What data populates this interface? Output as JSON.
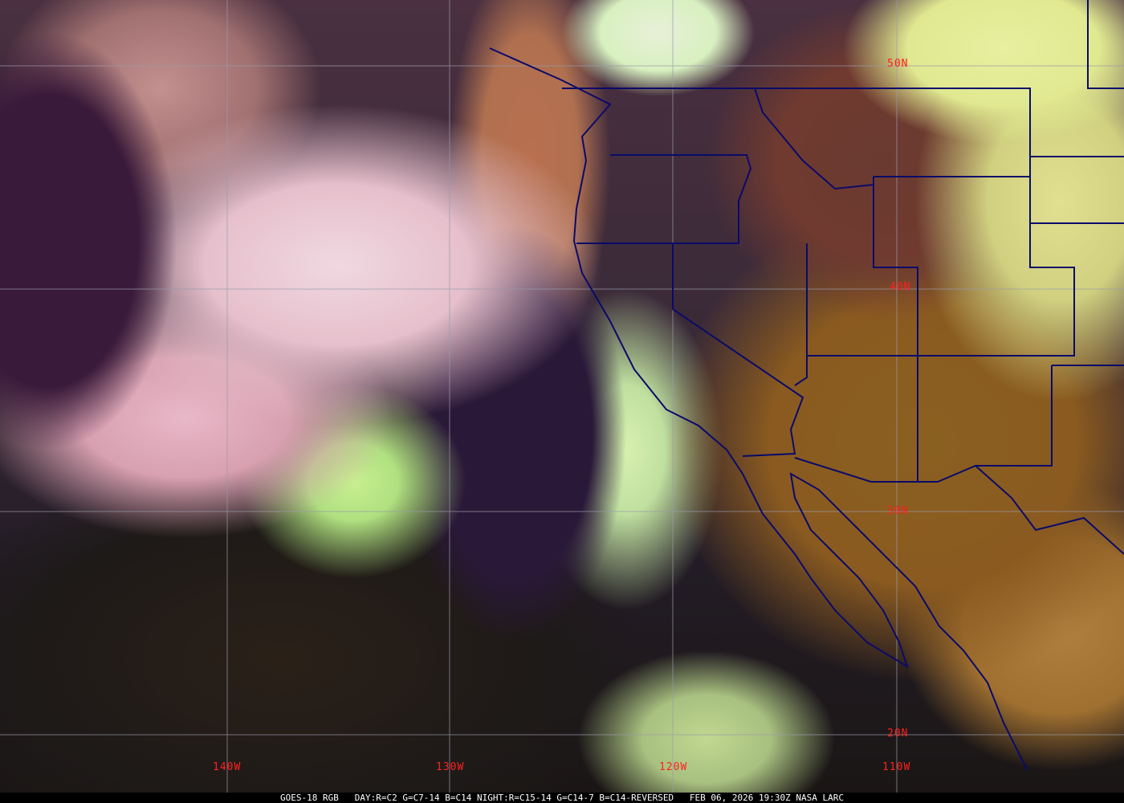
{
  "map": {
    "caption": "GOES-18 RGB   DAY:R=C2 G=C7-14 B=C14 NIGHT:R=C15-14 G=C14-7 B=C14-REVERSED   FEB 06, 2026 19:30Z NASA LARC",
    "latitude_labels": [
      "50N",
      "40N",
      "30N",
      "20N"
    ],
    "longitude_labels": [
      "140W",
      "130W",
      "120W",
      "110W"
    ],
    "colors": {
      "gridlines": "#9a9aaa",
      "borders": "#0a0a6a",
      "labels": "#ff2020"
    }
  }
}
